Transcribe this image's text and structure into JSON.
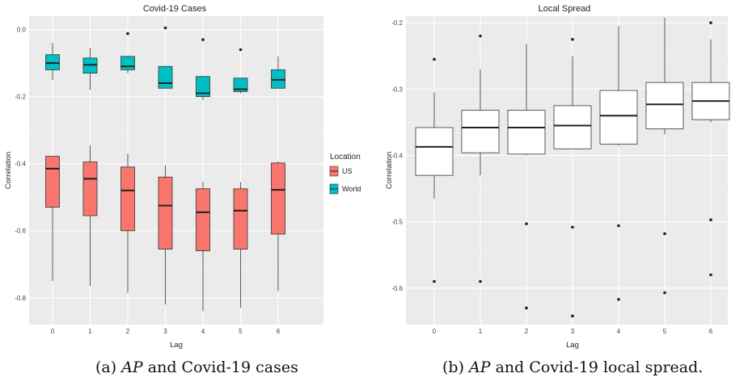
{
  "captions": {
    "left_label": "(a)",
    "left_var": "AP",
    "left_rest": "and Covid-19 cases",
    "right_label": "(b)",
    "right_var": "AP",
    "right_rest": "and Covid-19 local spread."
  },
  "chart_data": [
    {
      "type": "box",
      "title": "Covid-19 Cases",
      "xlabel": "Lag",
      "ylabel": "Correlation",
      "categories": [
        "0",
        "1",
        "2",
        "3",
        "4",
        "5",
        "6"
      ],
      "ylim": [
        -0.88,
        0.04
      ],
      "yticks": [
        0.0,
        -0.2,
        -0.4,
        -0.6,
        -0.8
      ],
      "ytick_labels": [
        "0.0",
        "-0.2",
        "-0.4",
        "-0.6",
        "-0.8"
      ],
      "grid": true,
      "background": "#ebebeb",
      "legend": {
        "title": "Location",
        "position": "right"
      },
      "series": [
        {
          "name": "US",
          "color": "#f8766d",
          "boxes": [
            {
              "lag": "0",
              "min": -0.75,
              "q1": -0.53,
              "median": -0.415,
              "q3": -0.378,
              "max": -0.378,
              "outliers": []
            },
            {
              "lag": "1",
              "min": -0.765,
              "q1": -0.555,
              "median": -0.445,
              "q3": -0.395,
              "max": -0.345,
              "outliers": []
            },
            {
              "lag": "2",
              "min": -0.785,
              "q1": -0.6,
              "median": -0.48,
              "q3": -0.41,
              "max": -0.37,
              "outliers": []
            },
            {
              "lag": "3",
              "min": -0.82,
              "q1": -0.655,
              "median": -0.525,
              "q3": -0.44,
              "max": -0.405,
              "outliers": []
            },
            {
              "lag": "4",
              "min": -0.84,
              "q1": -0.66,
              "median": -0.545,
              "q3": -0.475,
              "max": -0.455,
              "outliers": []
            },
            {
              "lag": "5",
              "min": -0.83,
              "q1": -0.655,
              "median": -0.54,
              "q3": -0.475,
              "max": -0.455,
              "outliers": []
            },
            {
              "lag": "6",
              "min": -0.78,
              "q1": -0.61,
              "median": -0.478,
              "q3": -0.398,
              "max": -0.393,
              "outliers": []
            }
          ]
        },
        {
          "name": "World",
          "color": "#00bfc4",
          "boxes": [
            {
              "lag": "0",
              "min": -0.15,
              "q1": -0.12,
              "median": -0.1,
              "q3": -0.075,
              "max": -0.04,
              "outliers": []
            },
            {
              "lag": "1",
              "min": -0.18,
              "q1": -0.13,
              "median": -0.105,
              "q3": -0.085,
              "max": -0.055,
              "outliers": []
            },
            {
              "lag": "2",
              "min": -0.13,
              "q1": -0.12,
              "median": -0.11,
              "q3": -0.08,
              "max": -0.08,
              "outliers": [
                -0.012
              ]
            },
            {
              "lag": "3",
              "min": -0.175,
              "q1": -0.175,
              "median": -0.16,
              "q3": -0.11,
              "max": -0.11,
              "outliers": [
                0.005
              ]
            },
            {
              "lag": "4",
              "min": -0.21,
              "q1": -0.2,
              "median": -0.19,
              "q3": -0.14,
              "max": -0.14,
              "outliers": [
                -0.03
              ]
            },
            {
              "lag": "5",
              "min": -0.19,
              "q1": -0.185,
              "median": -0.178,
              "q3": -0.145,
              "max": -0.145,
              "outliers": [
                -0.06
              ]
            },
            {
              "lag": "6",
              "min": -0.175,
              "q1": -0.175,
              "median": -0.15,
              "q3": -0.12,
              "max": -0.08,
              "outliers": []
            }
          ]
        }
      ]
    },
    {
      "type": "box",
      "title": "Local Spread",
      "xlabel": "Lag",
      "ylabel": "Correlation",
      "categories": [
        "0",
        "1",
        "2",
        "3",
        "4",
        "5",
        "6"
      ],
      "ylim": [
        -0.655,
        -0.19
      ],
      "yticks": [
        -0.2,
        -0.3,
        -0.4,
        -0.5,
        -0.6
      ],
      "ytick_labels": [
        "-0.2",
        "-0.3",
        "-0.4",
        "-0.5",
        "-0.6"
      ],
      "grid": true,
      "background": "#ebebeb",
      "series": [
        {
          "color": "#ffffff",
          "boxes": [
            {
              "lag": "0",
              "min": -0.465,
              "q1": -0.43,
              "median": -0.387,
              "q3": -0.358,
              "max": -0.305,
              "outliers": [
                -0.255,
                -0.59
              ]
            },
            {
              "lag": "1",
              "min": -0.43,
              "q1": -0.396,
              "median": -0.358,
              "q3": -0.332,
              "max": -0.27,
              "outliers": [
                -0.22,
                -0.59
              ]
            },
            {
              "lag": "2",
              "min": -0.4,
              "q1": -0.398,
              "median": -0.358,
              "q3": -0.332,
              "max": -0.232,
              "outliers": [
                -0.503,
                -0.63
              ]
            },
            {
              "lag": "3",
              "min": -0.39,
              "q1": -0.39,
              "median": -0.355,
              "q3": -0.325,
              "max": -0.25,
              "outliers": [
                -0.225,
                -0.508,
                -0.642
              ]
            },
            {
              "lag": "4",
              "min": -0.385,
              "q1": -0.383,
              "median": -0.34,
              "q3": -0.302,
              "max": -0.205,
              "outliers": [
                -0.506,
                -0.617
              ]
            },
            {
              "lag": "5",
              "min": -0.368,
              "q1": -0.36,
              "median": -0.323,
              "q3": -0.29,
              "max": -0.192,
              "outliers": [
                -0.518,
                -0.607
              ]
            },
            {
              "lag": "6",
              "min": -0.35,
              "q1": -0.346,
              "median": -0.318,
              "q3": -0.29,
              "max": -0.225,
              "outliers": [
                -0.2,
                -0.497,
                -0.58
              ]
            }
          ]
        }
      ]
    }
  ]
}
